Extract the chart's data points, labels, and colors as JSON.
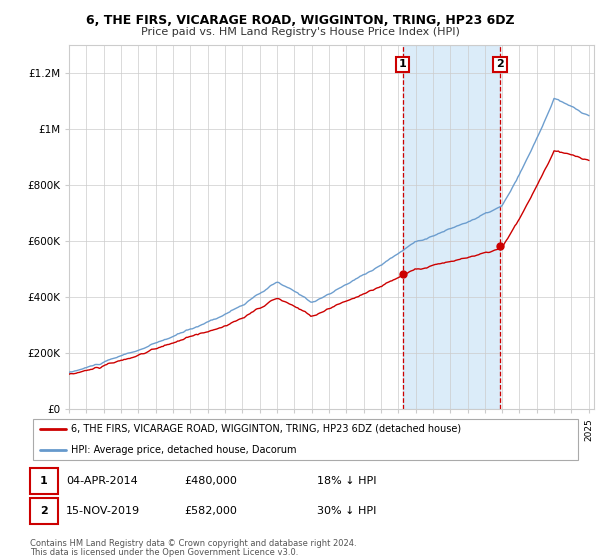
{
  "title": "6, THE FIRS, VICARAGE ROAD, WIGGINTON, TRING, HP23 6DZ",
  "subtitle": "Price paid vs. HM Land Registry's House Price Index (HPI)",
  "legend_line1": "6, THE FIRS, VICARAGE ROAD, WIGGINTON, TRING, HP23 6DZ (detached house)",
  "legend_line2": "HPI: Average price, detached house, Dacorum",
  "annotation1_label": "1",
  "annotation1_date": "04-APR-2014",
  "annotation1_price": "£480,000",
  "annotation1_hpi": "18% ↓ HPI",
  "annotation1_year": 2014.25,
  "annotation1_value": 480000,
  "annotation2_label": "2",
  "annotation2_date": "15-NOV-2019",
  "annotation2_price": "£582,000",
  "annotation2_hpi": "30% ↓ HPI",
  "annotation2_year": 2019.88,
  "annotation2_value": 582000,
  "footer1": "Contains HM Land Registry data © Crown copyright and database right 2024.",
  "footer2": "This data is licensed under the Open Government Licence v3.0.",
  "ylim": [
    0,
    1300000
  ],
  "yticks": [
    0,
    200000,
    400000,
    600000,
    800000,
    1000000,
    1200000
  ],
  "ytick_labels": [
    "£0",
    "£200K",
    "£400K",
    "£600K",
    "£800K",
    "£1M",
    "£1.2M"
  ],
  "shade_color": "#cce4f7",
  "red_color": "#cc0000",
  "blue_color": "#6699cc",
  "annotation_box_color": "#cc0000",
  "grid_color": "#cccccc",
  "background_color": "#ffffff"
}
